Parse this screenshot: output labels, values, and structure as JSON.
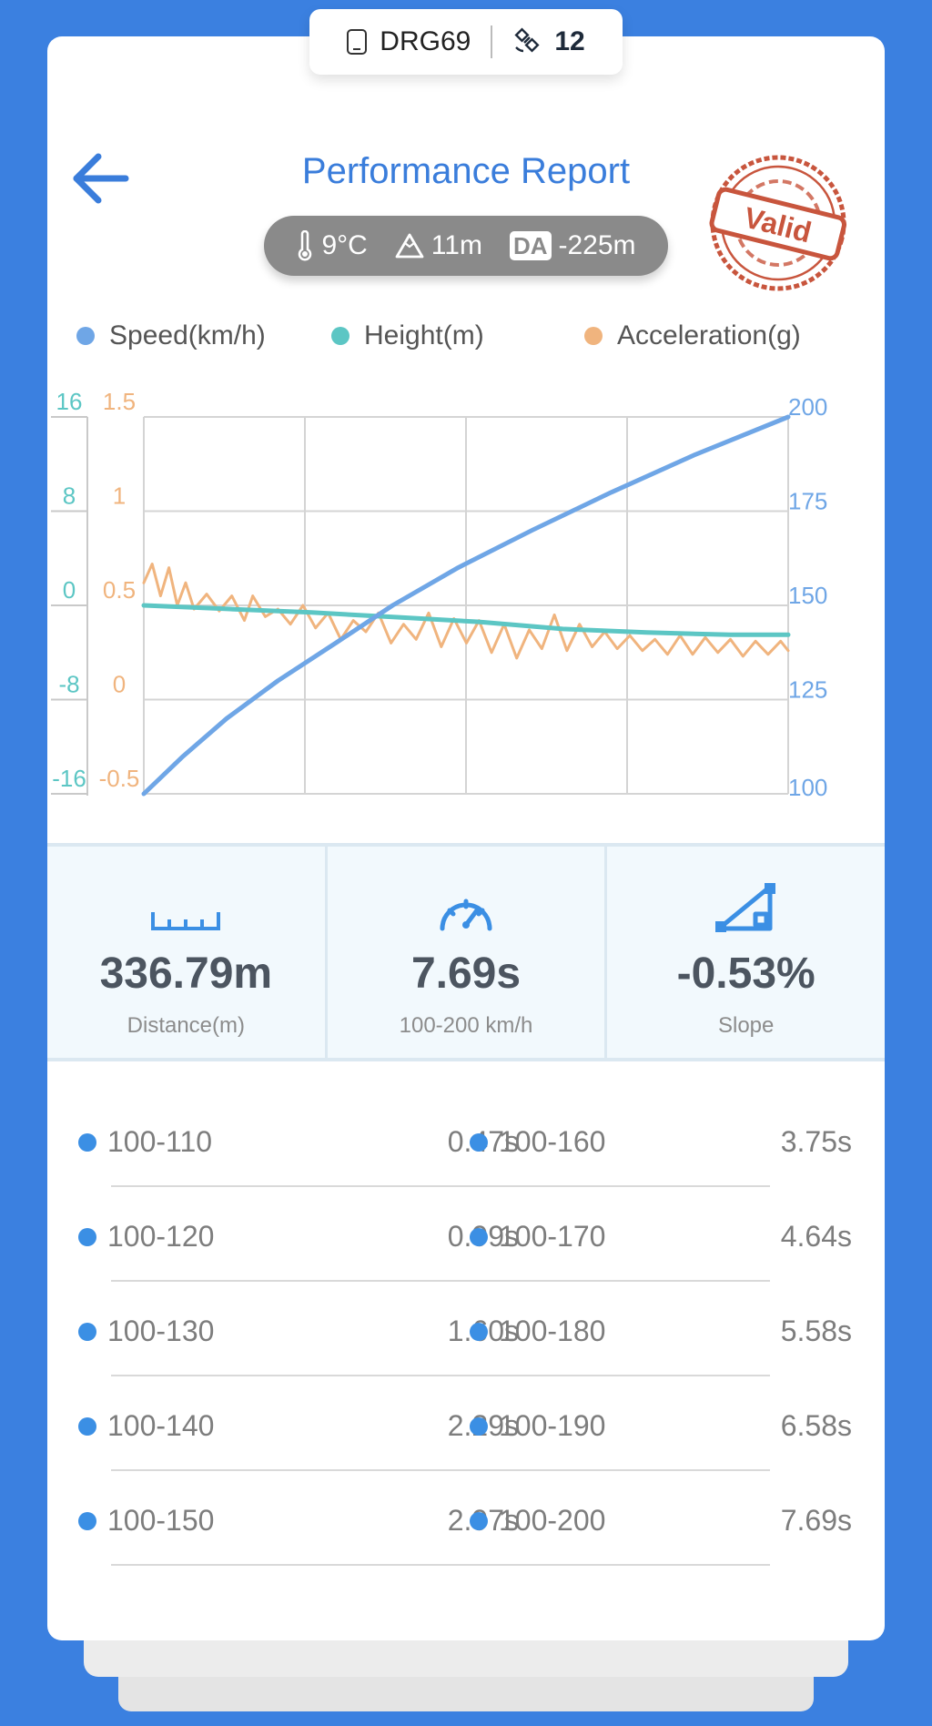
{
  "device": {
    "name": "DRG69",
    "satellites": "12",
    "phone_icon": "phone-icon",
    "sat_icon": "satellite-icon"
  },
  "header": {
    "title": "Performance Report",
    "back_icon": "arrow-left-icon"
  },
  "conditions": {
    "temperature": "9°C",
    "altitude": "11m",
    "da_label": "DA",
    "density_altitude": "-225m"
  },
  "stamp": {
    "text": "Valid",
    "color": "#c8553d"
  },
  "colors": {
    "speed": "#6fa6e6",
    "height": "#5cc6c4",
    "acceleration": "#f0b47e",
    "accent": "#3a7ddb",
    "background": "#3b80e0"
  },
  "chart_data": {
    "type": "line",
    "legend": [
      "Speed(km/h)",
      "Height(m)",
      "Acceleration(g)"
    ],
    "legend_position": "top",
    "grid": true,
    "axes": {
      "height": {
        "ticks": [
          "16",
          "8",
          "0",
          "-8",
          "-16"
        ],
        "range": [
          -16,
          16
        ]
      },
      "acceleration": {
        "ticks": [
          "1.5",
          "1",
          "0.5",
          "0",
          "-0.5"
        ],
        "range": [
          -0.5,
          1.5
        ]
      },
      "speed": {
        "ticks": [
          "200",
          "175",
          "150",
          "125",
          "100"
        ],
        "range": [
          100,
          200
        ]
      }
    },
    "x_range": [
      0,
      7.69
    ],
    "series": [
      {
        "name": "Speed(km/h)",
        "axis": "speed",
        "points": [
          [
            0,
            100
          ],
          [
            0.47,
            110
          ],
          [
            0.99,
            120
          ],
          [
            1.6,
            130
          ],
          [
            2.29,
            140
          ],
          [
            2.97,
            150
          ],
          [
            3.75,
            160
          ],
          [
            4.64,
            170
          ],
          [
            5.58,
            180
          ],
          [
            6.58,
            190
          ],
          [
            7.69,
            200
          ]
        ]
      },
      {
        "name": "Height(m)",
        "axis": "height",
        "points": [
          [
            0,
            0
          ],
          [
            1,
            -0.3
          ],
          [
            2,
            -0.6
          ],
          [
            3,
            -1.0
          ],
          [
            4,
            -1.4
          ],
          [
            5,
            -2.0
          ],
          [
            6,
            -2.3
          ],
          [
            7,
            -2.5
          ],
          [
            7.69,
            -2.5
          ]
        ]
      },
      {
        "name": "Acceleration(g)",
        "axis": "acceleration",
        "points": [
          [
            0,
            0.62
          ],
          [
            0.1,
            0.72
          ],
          [
            0.2,
            0.55
          ],
          [
            0.3,
            0.7
          ],
          [
            0.4,
            0.5
          ],
          [
            0.5,
            0.62
          ],
          [
            0.6,
            0.48
          ],
          [
            0.75,
            0.56
          ],
          [
            0.9,
            0.47
          ],
          [
            1.05,
            0.55
          ],
          [
            1.2,
            0.42
          ],
          [
            1.3,
            0.55
          ],
          [
            1.45,
            0.44
          ],
          [
            1.6,
            0.48
          ],
          [
            1.75,
            0.4
          ],
          [
            1.9,
            0.5
          ],
          [
            2.05,
            0.38
          ],
          [
            2.2,
            0.46
          ],
          [
            2.35,
            0.32
          ],
          [
            2.5,
            0.42
          ],
          [
            2.65,
            0.36
          ],
          [
            2.8,
            0.46
          ],
          [
            2.95,
            0.3
          ],
          [
            3.1,
            0.4
          ],
          [
            3.25,
            0.32
          ],
          [
            3.4,
            0.46
          ],
          [
            3.55,
            0.28
          ],
          [
            3.7,
            0.43
          ],
          [
            3.85,
            0.3
          ],
          [
            4.0,
            0.42
          ],
          [
            4.15,
            0.25
          ],
          [
            4.3,
            0.4
          ],
          [
            4.45,
            0.22
          ],
          [
            4.6,
            0.37
          ],
          [
            4.75,
            0.27
          ],
          [
            4.9,
            0.45
          ],
          [
            5.05,
            0.26
          ],
          [
            5.2,
            0.4
          ],
          [
            5.35,
            0.28
          ],
          [
            5.5,
            0.36
          ],
          [
            5.65,
            0.27
          ],
          [
            5.8,
            0.34
          ],
          [
            5.95,
            0.26
          ],
          [
            6.1,
            0.32
          ],
          [
            6.25,
            0.24
          ],
          [
            6.4,
            0.34
          ],
          [
            6.55,
            0.24
          ],
          [
            6.7,
            0.33
          ],
          [
            6.85,
            0.25
          ],
          [
            7.0,
            0.32
          ],
          [
            7.15,
            0.23
          ],
          [
            7.3,
            0.31
          ],
          [
            7.45,
            0.24
          ],
          [
            7.6,
            0.31
          ],
          [
            7.69,
            0.26
          ]
        ]
      }
    ]
  },
  "stats": [
    {
      "icon": "ruler-icon",
      "value": "336.79m",
      "label": "Distance(m)"
    },
    {
      "icon": "speedometer-icon",
      "value": "7.69s",
      "label": "100-200 km/h"
    },
    {
      "icon": "slope-icon",
      "value": "-0.53%",
      "label": "Slope"
    }
  ],
  "splits": [
    [
      {
        "range": "100-110",
        "time": "0.47s"
      },
      {
        "range": "100-160",
        "time": "3.75s"
      }
    ],
    [
      {
        "range": "100-120",
        "time": "0.99s"
      },
      {
        "range": "100-170",
        "time": "4.64s"
      }
    ],
    [
      {
        "range": "100-130",
        "time": "1.60s"
      },
      {
        "range": "100-180",
        "time": "5.58s"
      }
    ],
    [
      {
        "range": "100-140",
        "time": "2.29s"
      },
      {
        "range": "100-190",
        "time": "6.58s"
      }
    ],
    [
      {
        "range": "100-150",
        "time": "2.97s"
      },
      {
        "range": "100-200",
        "time": "7.69s"
      }
    ]
  ]
}
